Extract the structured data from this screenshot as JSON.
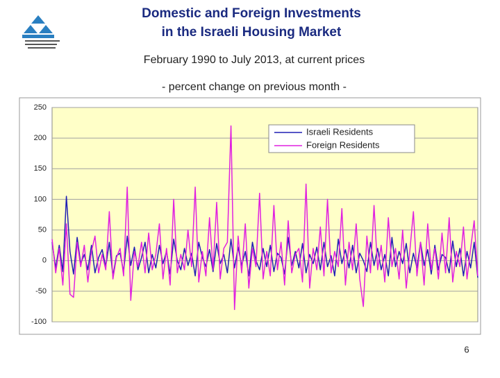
{
  "chart_data": {
    "type": "line",
    "title": [
      "Domestic and Foreign Investments",
      "in the Israeli Housing Market"
    ],
    "subtitle": "February 1990 to July 2013, at current prices",
    "note": "- percent change on previous month -",
    "ylim": [
      -100,
      250
    ],
    "yticks": [
      -100,
      -50,
      0,
      50,
      100,
      150,
      200,
      250
    ],
    "grid": true,
    "legend": "upper center",
    "series": [
      {
        "name": "Israeli Residents",
        "color": "#1f1fb4",
        "values": [
          30,
          -12,
          25,
          -18,
          105,
          15,
          -22,
          38,
          -5,
          10,
          -15,
          25,
          -20,
          5,
          18,
          -10,
          30,
          -25,
          8,
          12,
          -18,
          40,
          -8,
          22,
          -15,
          5,
          30,
          -20,
          10,
          -12,
          25,
          -5,
          15,
          -22,
          35,
          0,
          -15,
          20,
          -8,
          12,
          -25,
          30,
          5,
          -10,
          18,
          -18,
          28,
          -5,
          10,
          -20,
          35,
          -12,
          22,
          -8,
          15,
          -25,
          30,
          0,
          -15,
          20,
          -10,
          25,
          -18,
          12,
          5,
          -22,
          38,
          -8,
          15,
          -12,
          28,
          -20,
          10,
          -5,
          22,
          -15,
          30,
          -10,
          8,
          -25,
          35,
          -5,
          18,
          -12,
          25,
          -20,
          12,
          0,
          -18,
          30,
          -8,
          20,
          -15,
          10,
          -25,
          38,
          -10,
          15,
          -5,
          28,
          -20,
          12,
          -12,
          30,
          -8,
          18,
          -22,
          25,
          -15,
          10,
          5,
          -20,
          32,
          -10,
          20,
          -25,
          15,
          -12,
          30,
          -28
        ]
      },
      {
        "name": "Foreign Residents",
        "color": "#e020e0",
        "values": [
          35,
          -20,
          20,
          -40,
          60,
          -55,
          -60,
          30,
          -10,
          25,
          -35,
          15,
          40,
          -20,
          10,
          -15,
          80,
          -30,
          5,
          20,
          -25,
          120,
          -65,
          15,
          -10,
          30,
          -20,
          45,
          -15,
          10,
          60,
          -30,
          20,
          -40,
          100,
          -20,
          10,
          -15,
          50,
          -10,
          120,
          -35,
          15,
          -25,
          70,
          -15,
          95,
          -30,
          20,
          30,
          220,
          -80,
          40,
          -20,
          60,
          -45,
          20,
          -10,
          110,
          -30,
          15,
          -25,
          90,
          -15,
          30,
          -40,
          65,
          -20,
          10,
          20,
          -35,
          125,
          -45,
          20,
          -15,
          55,
          -25,
          100,
          -20,
          15,
          -10,
          85,
          -40,
          30,
          -15,
          60,
          -30,
          -75,
          40,
          -20,
          90,
          -15,
          25,
          -35,
          70,
          -10,
          20,
          -30,
          50,
          -45,
          15,
          80,
          -25,
          30,
          -40,
          60,
          -15,
          20,
          -30,
          45,
          -20,
          70,
          -35,
          15,
          -10,
          55,
          -30,
          20,
          65,
          -25
        ]
      }
    ]
  },
  "page_number": "6"
}
